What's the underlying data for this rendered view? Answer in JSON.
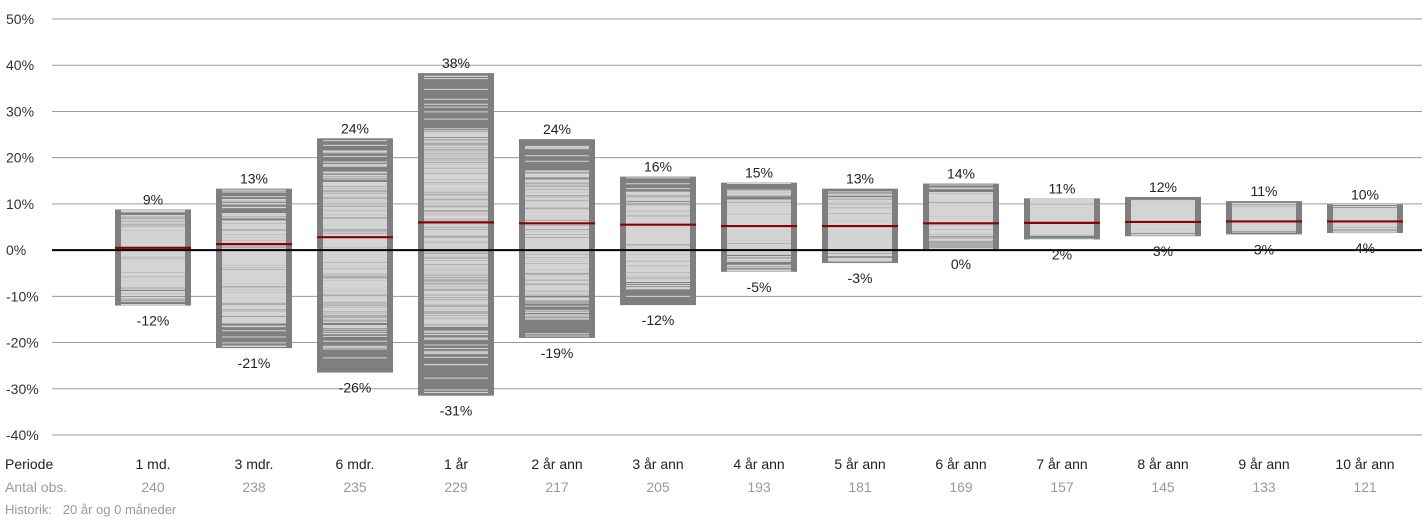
{
  "chart_data": {
    "type": "bar",
    "subtype": "floating-range",
    "title": "",
    "xlabel": "",
    "ylabel": "",
    "ylim": [
      -40,
      50
    ],
    "ytick_labels": [
      "50%",
      "40%",
      "30%",
      "20%",
      "10%",
      "0%",
      "-10%",
      "-20%",
      "-30%",
      "-40%"
    ],
    "grid": true,
    "legend": "none",
    "colors": {
      "range_bar": "#7f7f7f",
      "observation_lines": "#d4d4d4",
      "median_line": "#8b0000",
      "zero_line": "#000000",
      "grid": "#9a9a9a"
    },
    "row_labels": {
      "period": "Periode",
      "observations": "Antal obs."
    },
    "categories": [
      "1 md.",
      "3 mdr.",
      "6 mdr.",
      "1 år",
      "2 år ann",
      "3 år ann",
      "4 år ann",
      "5 år ann",
      "6 år ann",
      "7 år ann",
      "8 år ann",
      "9 år ann",
      "10 år ann"
    ],
    "max_labels": [
      "9%",
      "13%",
      "24%",
      "38%",
      "24%",
      "16%",
      "15%",
      "13%",
      "14%",
      "11%",
      "12%",
      "11%",
      "10%"
    ],
    "min_labels": [
      "-12%",
      "-21%",
      "-26%",
      "-31%",
      "-19%",
      "-12%",
      "-5%",
      "-3%",
      "0%",
      "2%",
      "3%",
      "3%",
      "4%"
    ],
    "max": [
      8.8,
      13.3,
      24.2,
      38.3,
      24.0,
      15.9,
      14.6,
      13.3,
      14.4,
      11.2,
      11.5,
      10.6,
      9.9
    ],
    "min": [
      -12.0,
      -21.2,
      -26.5,
      -31.5,
      -19.0,
      -11.9,
      -4.7,
      -2.8,
      0.2,
      2.3,
      3.0,
      3.4,
      3.7
    ],
    "median": [
      0.5,
      1.3,
      2.8,
      6.0,
      5.8,
      5.5,
      5.2,
      5.2,
      5.8,
      5.9,
      6.1,
      6.2,
      6.2
    ],
    "observations": [
      "240",
      "238",
      "235",
      "229",
      "217",
      "205",
      "193",
      "181",
      "169",
      "157",
      "145",
      "133",
      "121"
    ],
    "footnote": "Historik:   20 år og 0 måneder"
  }
}
